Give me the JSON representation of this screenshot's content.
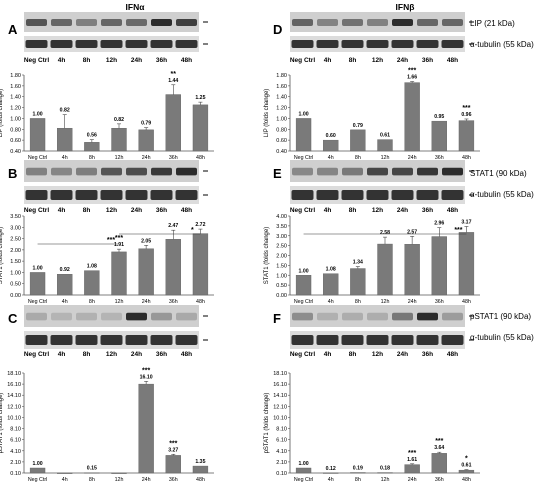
{
  "column_titles": {
    "left": "IFNα",
    "right": "IFNβ"
  },
  "blot_labels": {
    "lip": "LIP (21 kDa)",
    "tubulin": "α-tubulin (55 kDa)",
    "stat1": "STAT1 (90 kDa)",
    "pstat1": "pSTAT1 (90 kDa)"
  },
  "lane_labels": [
    "Neg Ctrl",
    "4h",
    "8h",
    "12h",
    "24h",
    "36h",
    "48h"
  ],
  "chart_data": [
    {
      "panel": "A",
      "type": "bar",
      "categories": [
        "Neg Ctrl",
        "4h",
        "8h",
        "12h",
        "24h",
        "36h",
        "48h"
      ],
      "values": [
        1.0,
        0.82,
        0.56,
        0.82,
        0.79,
        1.44,
        1.25
      ],
      "value_labels": [
        "1.00",
        "0.82",
        "0.56",
        "0.82",
        "0.79",
        "1.44",
        "1.25"
      ],
      "errors": [
        0,
        0.25,
        0.05,
        0.08,
        0.04,
        0.18,
        0.05
      ],
      "significance": [
        "",
        "",
        "",
        "",
        "",
        "**",
        ""
      ],
      "ylabel": "LIP (folds change)",
      "ylim": [
        0.4,
        1.8
      ],
      "yticks": [
        "0.40",
        "0.60",
        "0.80",
        "1.00",
        "1.20",
        "1.40",
        "1.60",
        "1.80"
      ]
    },
    {
      "panel": "B",
      "type": "bar",
      "categories": [
        "Neg Ctrl",
        "4h",
        "8h",
        "12h",
        "24h",
        "36h",
        "48h"
      ],
      "values": [
        1.0,
        0.92,
        1.08,
        1.91,
        2.05,
        2.47,
        2.72
      ],
      "value_labels": [
        "1.00",
        "0.92",
        "1.08",
        "1.91",
        "2.05",
        "2.47",
        "2.72"
      ],
      "errors": [
        0,
        0,
        0,
        0.12,
        0.15,
        0.4,
        0.2
      ],
      "significance": [
        "",
        "",
        "",
        "***",
        "",
        "",
        ""
      ],
      "brackets": [
        {
          "label": "***",
          "from": 0,
          "to": 3
        },
        {
          "label": "*",
          "from": 3,
          "to": 6
        }
      ],
      "ylabel": "STAT1 (folds change)",
      "ylim": [
        0.0,
        3.5
      ],
      "yticks": [
        "0.00",
        "0.50",
        "1.00",
        "1.50",
        "2.00",
        "2.50",
        "3.00",
        "3.50"
      ]
    },
    {
      "panel": "C",
      "type": "bar",
      "categories": [
        "Neg Ctrl",
        "4h",
        "8h",
        "12h",
        "24h",
        "36h",
        "48h"
      ],
      "values": [
        1.0,
        0.0,
        0.15,
        0.0,
        16.1,
        3.27,
        1.35
      ],
      "value_labels": [
        "1.00",
        "",
        "0.15",
        "",
        "16.10",
        "3.27",
        "1.35"
      ],
      "errors": [
        0,
        0,
        0,
        0,
        0.5,
        0.2,
        0
      ],
      "significance": [
        "",
        "",
        "",
        "",
        "***",
        "***",
        ""
      ],
      "ylabel": "pSTAT1 (folds change)",
      "ylim": [
        0.1,
        18.1
      ],
      "yticks": [
        "0.10",
        "2.10",
        "4.10",
        "6.10",
        "8.10",
        "10.10",
        "12.10",
        "14.10",
        "16.10",
        "18.10"
      ]
    },
    {
      "panel": "D",
      "type": "bar",
      "categories": [
        "Neg Ctrl",
        "4h",
        "8h",
        "12h",
        "24h",
        "36h",
        "48h"
      ],
      "values": [
        1.0,
        0.6,
        0.79,
        0.61,
        1.66,
        0.95,
        0.96
      ],
      "value_labels": [
        "1.00",
        "0.60",
        "0.79",
        "0.61",
        "1.66",
        "0.95",
        "0.96"
      ],
      "errors": [
        0,
        0,
        0,
        0,
        0.02,
        0,
        0.03
      ],
      "significance": [
        "",
        "",
        "",
        "",
        "***",
        "",
        "***"
      ],
      "ylabel": "LIP (folds change)",
      "ylim": [
        0.4,
        1.8
      ],
      "yticks": [
        "0.40",
        "0.60",
        "0.80",
        "1.00",
        "1.20",
        "1.40",
        "1.60",
        "1.80"
      ]
    },
    {
      "panel": "E",
      "type": "bar",
      "categories": [
        "Neg Ctrl",
        "4h",
        "8h",
        "12h",
        "24h",
        "36h",
        "48h"
      ],
      "values": [
        1.0,
        1.08,
        1.34,
        2.58,
        2.57,
        2.96,
        3.17
      ],
      "value_labels": [
        "1.00",
        "1.08",
        "1.34",
        "2.58",
        "2.57",
        "2.96",
        "3.17"
      ],
      "errors": [
        0,
        0,
        0.1,
        0.35,
        0.4,
        0.45,
        0.3
      ],
      "significance": [
        "",
        "",
        "",
        "",
        "",
        "",
        ""
      ],
      "brackets": [
        {
          "label": "***",
          "from": 0,
          "to": 6
        }
      ],
      "ylabel": "STAT1 (folds change)",
      "ylim": [
        0.0,
        4.0
      ],
      "yticks": [
        "0.00",
        "0.50",
        "1.00",
        "1.50",
        "2.00",
        "2.50",
        "3.00",
        "3.50",
        "4.00"
      ]
    },
    {
      "panel": "F",
      "type": "bar",
      "categories": [
        "Neg Ctrl",
        "4h",
        "8h",
        "12h",
        "24h",
        "36h",
        "48h"
      ],
      "values": [
        1.0,
        0.12,
        0.19,
        0.18,
        1.61,
        3.64,
        0.61
      ],
      "value_labels": [
        "1.00",
        "0.12",
        "0.19",
        "0.18",
        "1.61",
        "3.64",
        "0.61"
      ],
      "errors": [
        0,
        0,
        0,
        0,
        0.15,
        0.2,
        0.1
      ],
      "significance": [
        "",
        "",
        "",
        "",
        "***",
        "***",
        "*"
      ],
      "ylabel": "pSTAT1 (folds change)",
      "ylim": [
        0.1,
        18.1
      ],
      "yticks": [
        "0.10",
        "2.10",
        "4.10",
        "6.10",
        "8.10",
        "10.10",
        "12.10",
        "14.10",
        "16.10",
        "18.10"
      ]
    }
  ]
}
